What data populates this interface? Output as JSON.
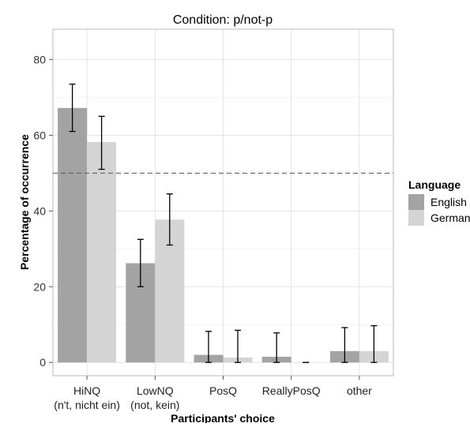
{
  "chart_data": {
    "type": "bar",
    "title": "Condition: p/not-p",
    "xlabel": "Participants' choice",
    "ylabel": "Percentage of occurrence",
    "ylim": [
      -3.5,
      88
    ],
    "y_ticks": [
      0,
      20,
      40,
      60,
      80
    ],
    "reference_line": 50,
    "grid": true,
    "legend_position": "right",
    "categories": [
      {
        "line1": "HiNQ",
        "line2": "(n't, nicht ein)"
      },
      {
        "line1": "LowNQ",
        "line2": "(not, kein)"
      },
      {
        "line1": "PosQ",
        "line2": ""
      },
      {
        "line1": "ReallyPosQ",
        "line2": ""
      },
      {
        "line1": "other",
        "line2": ""
      }
    ],
    "legend": {
      "title": "Language",
      "items": [
        "English",
        "German"
      ]
    },
    "series": [
      {
        "name": "English",
        "color": "#a3a3a3",
        "values": [
          67.2,
          26.2,
          2.0,
          1.5,
          3.0
        ],
        "err_low": [
          61.0,
          20.0,
          0.0,
          0.0,
          0.0
        ],
        "err_high": [
          73.5,
          32.5,
          8.2,
          7.8,
          9.2
        ]
      },
      {
        "name": "German",
        "color": "#d4d4d4",
        "values": [
          58.2,
          37.7,
          1.3,
          0.0,
          3.0
        ],
        "err_low": [
          51.0,
          31.0,
          0.0,
          0.0,
          0.0
        ],
        "err_high": [
          65.0,
          44.5,
          8.5,
          0.0,
          9.7
        ]
      }
    ]
  }
}
